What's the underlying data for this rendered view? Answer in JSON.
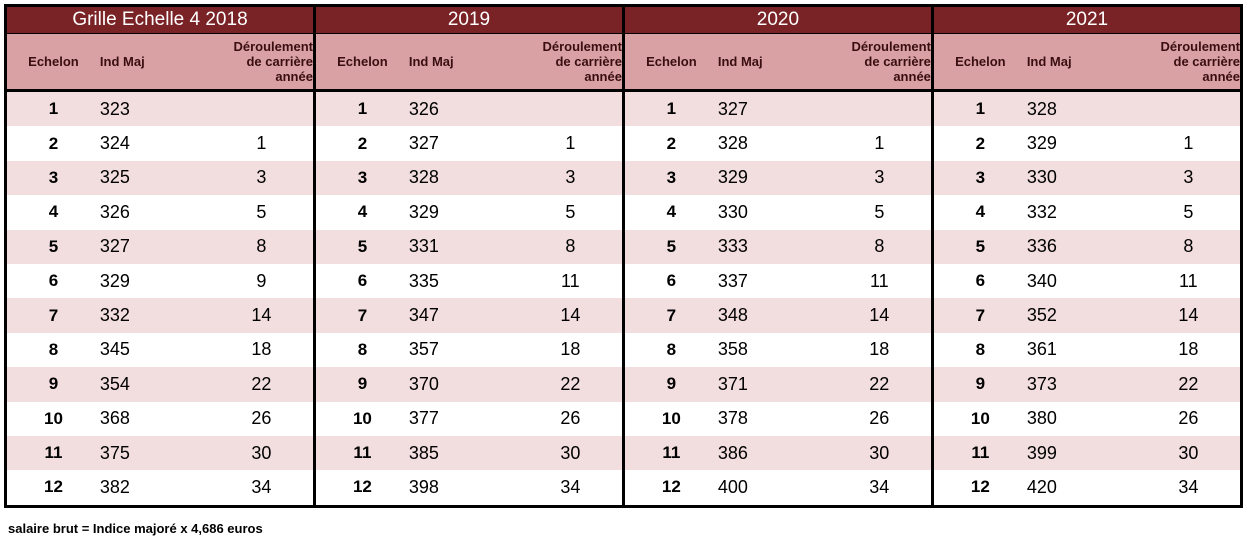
{
  "years": [
    {
      "title": "Grille Echelle 4  2018",
      "ind": [
        323,
        324,
        325,
        326,
        327,
        329,
        332,
        345,
        354,
        368,
        375,
        382
      ]
    },
    {
      "title": "2019",
      "ind": [
        326,
        327,
        328,
        329,
        331,
        335,
        347,
        357,
        370,
        377,
        385,
        398
      ]
    },
    {
      "title": "2020",
      "ind": [
        327,
        328,
        329,
        330,
        333,
        337,
        348,
        358,
        371,
        378,
        386,
        400
      ]
    },
    {
      "title": "2021",
      "ind": [
        328,
        329,
        330,
        332,
        336,
        340,
        352,
        361,
        373,
        380,
        399,
        420
      ]
    }
  ],
  "headers": {
    "echelon": "Echelon",
    "ind_maj": "Ind Maj",
    "deroulement": [
      "Déroulement",
      "de carrière",
      "année"
    ]
  },
  "echelons": [
    "1",
    "2",
    "3",
    "4",
    "5",
    "6",
    "7",
    "8",
    "9",
    "10",
    "11",
    "12"
  ],
  "deroulement": [
    "",
    "1",
    "3",
    "5",
    "8",
    "9",
    "14",
    "18",
    "22",
    "26",
    "30",
    "34"
  ],
  "deroulement_overrides": {
    "1": {
      "5": "11"
    },
    "2": {
      "5": "11"
    },
    "3": {
      "5": "11"
    }
  },
  "note": "salaire brut = Indice majoré x 4,686 euros",
  "colors": {
    "year_header": "#7a2326",
    "col_header": "#d9a1a3",
    "alt_row": "#f3dedf"
  }
}
